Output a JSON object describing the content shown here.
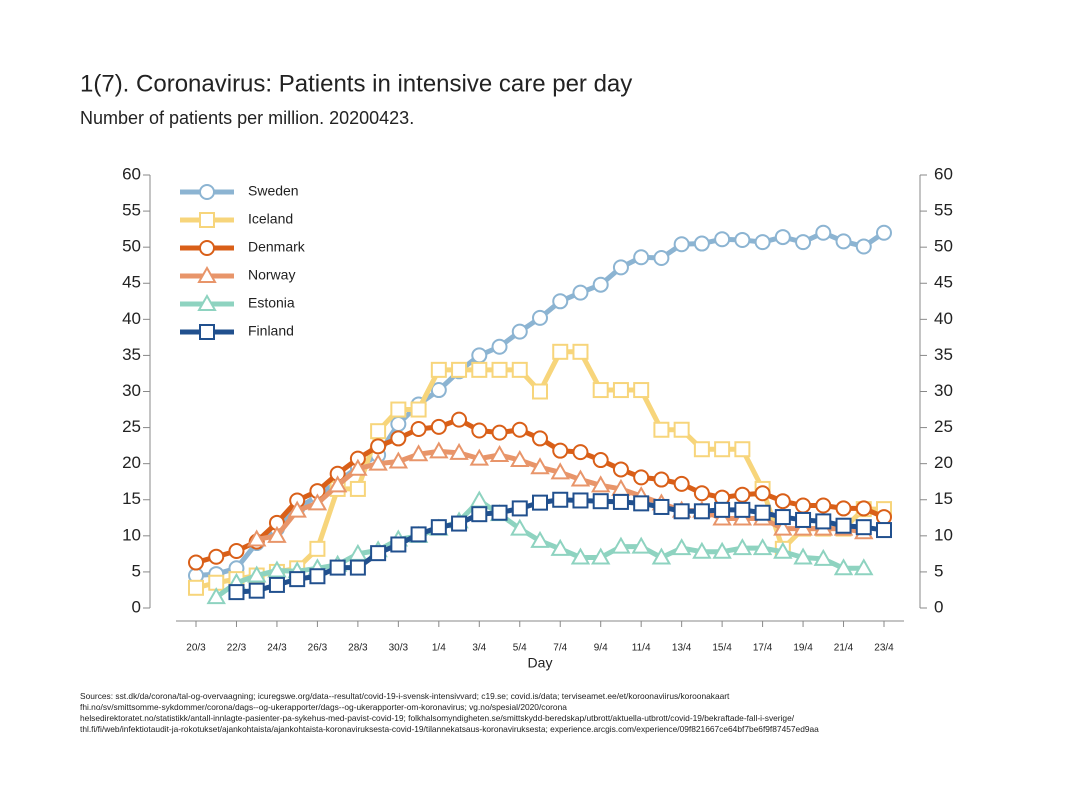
{
  "chart_data": {
    "type": "line",
    "title": "1(7). Coronavirus: Patients in intensive care per day",
    "subtitle": "Number of patients per million. 20200423.",
    "x_label": "Day",
    "categories": [
      "20/3",
      null,
      "22/3",
      null,
      "24/3",
      null,
      "26/3",
      null,
      "28/3",
      null,
      "30/3",
      null,
      "1/4",
      null,
      "3/4",
      null,
      "5/4",
      null,
      "7/4",
      null,
      "9/4",
      null,
      "11/4",
      null,
      "13/4",
      null,
      "15/4",
      null,
      "17/4",
      null,
      "19/4",
      null,
      "21/4",
      null,
      "23/4"
    ],
    "ylim": [
      0,
      60
    ],
    "yticks": [
      0,
      5,
      10,
      15,
      20,
      25,
      30,
      35,
      40,
      45,
      50,
      55,
      60
    ],
    "y2lim": [
      0,
      60
    ],
    "y2ticks": [
      0,
      5,
      10,
      15,
      20,
      25,
      30,
      35,
      40,
      45,
      50,
      55,
      60
    ],
    "legend": "top-left",
    "series": [
      {
        "name": "Sweden",
        "color": "#8cb4d2",
        "marker": "circle",
        "values": [
          4.5,
          4.7,
          5.5,
          9,
          11,
          13.8,
          15.5,
          17.5,
          19.5,
          21.2,
          25.5,
          28.2,
          30.2,
          32.8,
          35,
          36.2,
          38.3,
          40.2,
          42.5,
          43.7,
          44.8,
          47.2,
          48.6,
          48.5,
          50.4,
          50.5,
          51.1,
          51,
          50.7,
          51.4,
          50.7,
          52,
          50.8,
          50.1,
          52
        ]
      },
      {
        "name": "Iceland",
        "color": "#f7d57b",
        "marker": "square",
        "values": [
          2.8,
          3.5,
          4,
          4.5,
          5,
          5.5,
          8.2,
          16.5,
          16.5,
          24.5,
          27.5,
          27.5,
          33,
          33,
          33,
          33,
          33,
          30,
          35.5,
          35.5,
          30.2,
          30.2,
          30.2,
          24.7,
          24.7,
          22,
          22,
          22,
          16.5,
          8.2,
          11,
          11,
          11,
          13.7,
          13.7
        ]
      },
      {
        "name": "Denmark",
        "color": "#d95f18",
        "marker": "circle",
        "values": [
          6.3,
          7.1,
          7.9,
          9.2,
          11.8,
          14.9,
          16.2,
          18.6,
          20.7,
          22.4,
          23.5,
          24.8,
          25.1,
          26.1,
          24.6,
          24.3,
          24.7,
          23.5,
          21.8,
          21.6,
          20.5,
          19.2,
          18.1,
          17.8,
          17.2,
          15.9,
          15.3,
          15.7,
          15.9,
          14.8,
          14.2,
          14.2,
          13.8,
          13.8,
          12.6
        ]
      },
      {
        "name": "Norway",
        "color": "#e8956a",
        "marker": "triangle",
        "values": [
          null,
          null,
          null,
          9.5,
          10,
          13.5,
          14.5,
          17,
          19.3,
          20,
          20.3,
          21.3,
          21.7,
          21.5,
          20.7,
          21.2,
          20.5,
          19.5,
          18.8,
          17.8,
          17,
          16.5,
          15.5,
          14.5,
          13.5,
          13.5,
          12.4,
          12.4,
          12.4,
          11,
          11,
          11,
          11,
          10.5,
          null
        ]
      },
      {
        "name": "Estonia",
        "color": "#8ed3c0",
        "marker": "triangle",
        "values": [
          null,
          1.5,
          3.5,
          4.5,
          5.2,
          5.1,
          5.5,
          6,
          7.5,
          8,
          9.5,
          10,
          11,
          12,
          14.9,
          13,
          11,
          9.3,
          8.2,
          7,
          7,
          8.5,
          8.5,
          7,
          8.3,
          7.8,
          7.8,
          8.3,
          8.3,
          7.8,
          7,
          6.8,
          5.5,
          5.5,
          null
        ]
      },
      {
        "name": "Finland",
        "color": "#21508e",
        "marker": "square",
        "values": [
          null,
          null,
          2.2,
          2.4,
          3.2,
          4,
          4.4,
          5.6,
          5.6,
          7.6,
          8.8,
          10.2,
          11.2,
          11.7,
          13,
          13.2,
          13.8,
          14.6,
          15,
          14.9,
          14.8,
          14.7,
          14.5,
          14,
          13.4,
          13.4,
          13.6,
          13.6,
          13.2,
          12.6,
          12.2,
          12,
          11.4,
          11.2,
          10.8
        ]
      }
    ],
    "sources": [
      "Sources: sst.dk/da/corona/tal-og-overvaagning; icuregswe.org/data--resultat/covid-19-i-svensk-intensivvard; c19.se; covid.is/data;  terviseamet.ee/et/koroonaviirus/koroonakaart",
      "fhi.no/sv/smittsomme-sykdommer/corona/dags--og-ukerapporter/dags--og-ukerapporter-om-koronavirus; vg.no/spesial/2020/corona",
      "helsedirektoratet.no/statistikk/antall-innlagte-pasienter-pa-sykehus-med-pavist-covid-19; folkhalsomyndigheten.se/smittskydd-beredskap/utbrott/aktuella-utbrott/covid-19/bekraftade-fall-i-sverige/",
      "thl.fi/fi/web/infektiotaudit-ja-rokotukset/ajankohtaista/ajankohtaista-koronaviruksesta-covid-19/tilannekatsaus-koronaviruksesta; experience.arcgis.com/experience/09f821667ce64bf7be6f9f87457ed9aa"
    ]
  }
}
